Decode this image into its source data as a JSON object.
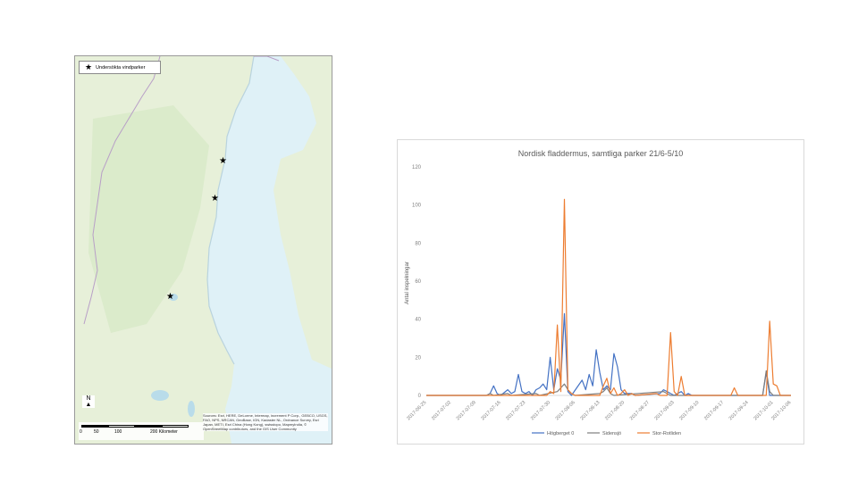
{
  "map": {
    "legend_label": "Undersökta vindparker",
    "north_label": "N",
    "scale_ticks": [
      "0",
      "50",
      "100",
      "200 Kilometer"
    ],
    "credits": "Sources: Esri, HERE, DeLorme, Intermap, increment P Corp., GEBCO, USGS, FAO, NPS, NRCAN, GeoBase, IGN, Kadaster NL, Ordnance Survey, Esri Japan, METI, Esri China (Hong Kong), swisstopo, MapmyIndia, © OpenStreetMap contributors, and the GIS User Community",
    "colors": {
      "water": "#dff1f7",
      "land": "#e7f0d9",
      "forest": "#d6e8c4",
      "border": "#b89fc7"
    }
  },
  "chart_data": {
    "type": "line",
    "title": "Nordisk fladdermus, samtliga parker 21/6-5/10",
    "ylabel": "Antal inspelningar",
    "ylim": [
      0,
      120
    ],
    "yticks": [
      0,
      20,
      40,
      60,
      80,
      100,
      120
    ],
    "x_start_date": "2017-06-25",
    "x_end_date": "2017-10-06",
    "xtick_labels": [
      "2017-06-25",
      "2017-07-02",
      "2017-07-09",
      "2017-07-16",
      "2017-07-23",
      "2017-07-30",
      "2017-08-06",
      "2017-08-13",
      "2017-08-20",
      "2017-08-27",
      "2017-09-03",
      "2017-09-10",
      "2017-09-17",
      "2017-09-24",
      "2017-10-01",
      "2017-10-06"
    ],
    "series": [
      {
        "name": "Högberget 0",
        "color": "#4472c4",
        "points": [
          [
            "2017-06-25",
            0
          ],
          [
            "2017-07-12",
            0
          ],
          [
            "2017-07-13",
            1
          ],
          [
            "2017-07-14",
            5
          ],
          [
            "2017-07-15",
            1
          ],
          [
            "2017-07-16",
            0
          ],
          [
            "2017-07-18",
            3
          ],
          [
            "2017-07-19",
            1
          ],
          [
            "2017-07-20",
            2
          ],
          [
            "2017-07-21",
            11
          ],
          [
            "2017-07-22",
            2
          ],
          [
            "2017-07-23",
            1
          ],
          [
            "2017-07-24",
            2
          ],
          [
            "2017-07-25",
            0
          ],
          [
            "2017-07-26",
            3
          ],
          [
            "2017-07-27",
            4
          ],
          [
            "2017-07-28",
            6
          ],
          [
            "2017-07-29",
            3
          ],
          [
            "2017-07-30",
            20
          ],
          [
            "2017-07-31",
            3
          ],
          [
            "2017-08-01",
            14
          ],
          [
            "2017-08-02",
            8
          ],
          [
            "2017-08-03",
            43
          ],
          [
            "2017-08-04",
            2
          ],
          [
            "2017-08-05",
            0
          ],
          [
            "2017-08-08",
            8
          ],
          [
            "2017-08-09",
            3
          ],
          [
            "2017-08-10",
            11
          ],
          [
            "2017-08-11",
            5
          ],
          [
            "2017-08-12",
            24
          ],
          [
            "2017-08-13",
            12
          ],
          [
            "2017-08-14",
            3
          ],
          [
            "2017-08-15",
            5
          ],
          [
            "2017-08-16",
            3
          ],
          [
            "2017-08-17",
            22
          ],
          [
            "2017-08-18",
            15
          ],
          [
            "2017-08-19",
            3
          ],
          [
            "2017-08-20",
            1
          ],
          [
            "2017-08-22",
            1
          ],
          [
            "2017-08-23",
            0
          ],
          [
            "2017-08-30",
            1
          ],
          [
            "2017-08-31",
            3
          ],
          [
            "2017-09-01",
            2
          ],
          [
            "2017-09-02",
            1
          ],
          [
            "2017-09-03",
            0
          ],
          [
            "2017-09-04",
            1
          ],
          [
            "2017-09-05",
            2
          ],
          [
            "2017-09-06",
            0
          ],
          [
            "2017-09-07",
            1
          ],
          [
            "2017-09-08",
            0
          ],
          [
            "2017-09-28",
            0
          ],
          [
            "2017-09-29",
            12
          ],
          [
            "2017-09-30",
            0
          ],
          [
            "2017-10-06",
            0
          ]
        ]
      },
      {
        "name": "Sidensjö",
        "color": "#7f7f7f",
        "points": [
          [
            "2017-06-25",
            0
          ],
          [
            "2017-07-12",
            0
          ],
          [
            "2017-07-13",
            1
          ],
          [
            "2017-07-14",
            0
          ],
          [
            "2017-07-18",
            1
          ],
          [
            "2017-07-19",
            0
          ],
          [
            "2017-07-26",
            1
          ],
          [
            "2017-07-27",
            0
          ],
          [
            "2017-08-01",
            2
          ],
          [
            "2017-08-02",
            4
          ],
          [
            "2017-08-03",
            6
          ],
          [
            "2017-08-04",
            3
          ],
          [
            "2017-08-05",
            1
          ],
          [
            "2017-08-06",
            0
          ],
          [
            "2017-08-13",
            1
          ],
          [
            "2017-08-14",
            2
          ],
          [
            "2017-08-15",
            4
          ],
          [
            "2017-08-16",
            1
          ],
          [
            "2017-08-17",
            0
          ],
          [
            "2017-08-31",
            2
          ],
          [
            "2017-09-01",
            1
          ],
          [
            "2017-09-02",
            0
          ],
          [
            "2017-09-28",
            0
          ],
          [
            "2017-09-29",
            13
          ],
          [
            "2017-09-30",
            2
          ],
          [
            "2017-10-01",
            0
          ],
          [
            "2017-10-06",
            0
          ]
        ]
      },
      {
        "name": "Stor-Rotliden",
        "color": "#ed7d31",
        "points": [
          [
            "2017-06-25",
            0
          ],
          [
            "2017-07-29",
            0
          ],
          [
            "2017-07-30",
            2
          ],
          [
            "2017-07-31",
            1
          ],
          [
            "2017-08-01",
            37
          ],
          [
            "2017-08-02",
            2
          ],
          [
            "2017-08-03",
            103
          ],
          [
            "2017-08-04",
            3
          ],
          [
            "2017-08-05",
            1
          ],
          [
            "2017-08-06",
            0
          ],
          [
            "2017-08-13",
            0
          ],
          [
            "2017-08-14",
            5
          ],
          [
            "2017-08-15",
            9
          ],
          [
            "2017-08-16",
            1
          ],
          [
            "2017-08-17",
            4
          ],
          [
            "2017-08-18",
            0
          ],
          [
            "2017-08-19",
            1
          ],
          [
            "2017-08-20",
            3
          ],
          [
            "2017-08-21",
            0
          ],
          [
            "2017-08-22",
            1
          ],
          [
            "2017-08-23",
            0
          ],
          [
            "2017-08-29",
            1
          ],
          [
            "2017-08-30",
            0
          ],
          [
            "2017-09-01",
            0
          ],
          [
            "2017-09-02",
            33
          ],
          [
            "2017-09-03",
            2
          ],
          [
            "2017-09-04",
            0
          ],
          [
            "2017-09-05",
            10
          ],
          [
            "2017-09-06",
            0
          ],
          [
            "2017-09-19",
            0
          ],
          [
            "2017-09-20",
            4
          ],
          [
            "2017-09-21",
            0
          ],
          [
            "2017-09-29",
            0
          ],
          [
            "2017-09-30",
            39
          ],
          [
            "2017-10-01",
            6
          ],
          [
            "2017-10-02",
            5
          ],
          [
            "2017-10-03",
            0
          ],
          [
            "2017-10-06",
            0
          ]
        ]
      }
    ],
    "legend_position": "bottom",
    "grid": false
  }
}
